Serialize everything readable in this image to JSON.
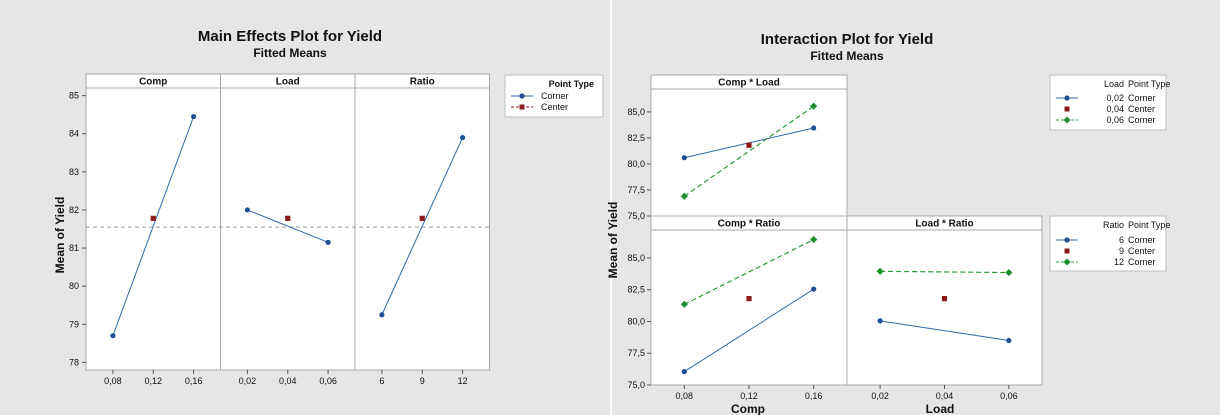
{
  "main_effects": {
    "title": "Main Effects Plot for Yield",
    "subtitle": "Fitted Means",
    "ylabel": "Mean of Yield",
    "legend_title": "Point Type",
    "legend_items": [
      "Corner",
      "Center"
    ]
  },
  "interaction": {
    "title": "Interaction Plot for Yield",
    "subtitle": "Fitted Means",
    "ylabel": "Mean of Yield",
    "xlabel_comp": "Comp",
    "xlabel_load": "Load",
    "legend_load": {
      "headers": [
        "Load",
        "Point Type"
      ],
      "rows": [
        [
          "0,02",
          "Corner"
        ],
        [
          "0,04",
          "Center"
        ],
        [
          "0,06",
          "Corner"
        ]
      ]
    },
    "legend_ratio": {
      "headers": [
        "Ratio",
        "Point Type"
      ],
      "rows": [
        [
          "6",
          "Corner"
        ],
        [
          "9",
          "Center"
        ],
        [
          "12",
          "Corner"
        ]
      ]
    }
  },
  "chart_data": [
    {
      "type": "line",
      "title": "Main Effects Plot for Yield",
      "subtitle": "Fitted Means",
      "ylabel": "Mean of Yield",
      "ylim": [
        77.8,
        85.2
      ],
      "yticks": [
        "78",
        "79",
        "80",
        "81",
        "82",
        "83",
        "84",
        "85"
      ],
      "reference_line": 81.55,
      "legend": {
        "title": "Point Type",
        "placement": "right",
        "entries": [
          "Corner",
          "Center"
        ]
      },
      "panels": [
        {
          "name": "Comp",
          "x_ticks": [
            "0,08",
            "0,12",
            "0,16"
          ],
          "corner": [
            78.7,
            84.45
          ],
          "center": 81.78
        },
        {
          "name": "Load",
          "x_ticks": [
            "0,02",
            "0,04",
            "0,06"
          ],
          "corner": [
            82.0,
            81.15
          ],
          "center": 81.78
        },
        {
          "name": "Ratio",
          "x_ticks": [
            "6",
            "9",
            "12"
          ],
          "corner": [
            79.25,
            83.9
          ],
          "center": 81.78
        }
      ]
    },
    {
      "type": "line",
      "title": "Interaction Plot for Yield",
      "subtitle": "Fitted Means",
      "ylabel": "Mean of Yield",
      "ylim": [
        75,
        87.2
      ],
      "yticks": [
        "75,0",
        "77,5",
        "80,0",
        "82,5",
        "85,0"
      ],
      "panels": [
        {
          "name": "Comp * Load",
          "x_ticks": [
            "0,08",
            "0,12",
            "0,16"
          ],
          "series": [
            {
              "name": "0,02",
              "values": [
                80.6,
                83.45
              ]
            },
            {
              "name": "0,06",
              "values": [
                76.9,
                85.55
              ]
            }
          ],
          "center": 81.8
        },
        {
          "name": "Comp * Ratio",
          "x_ticks": [
            "0,08",
            "0,12",
            "0,16"
          ],
          "series": [
            {
              "name": "6",
              "values": [
                76.05,
                82.55
              ]
            },
            {
              "name": "12",
              "values": [
                81.35,
                86.45
              ]
            }
          ],
          "center": 81.8
        },
        {
          "name": "Load * Ratio",
          "x_ticks": [
            "0,02",
            "0,04",
            "0,06"
          ],
          "series": [
            {
              "name": "6",
              "values": [
                80.05,
                78.5
              ]
            },
            {
              "name": "12",
              "values": [
                83.95,
                83.85
              ]
            }
          ],
          "center": 81.8
        }
      ],
      "xlabels": [
        "Comp",
        "Load"
      ]
    }
  ]
}
